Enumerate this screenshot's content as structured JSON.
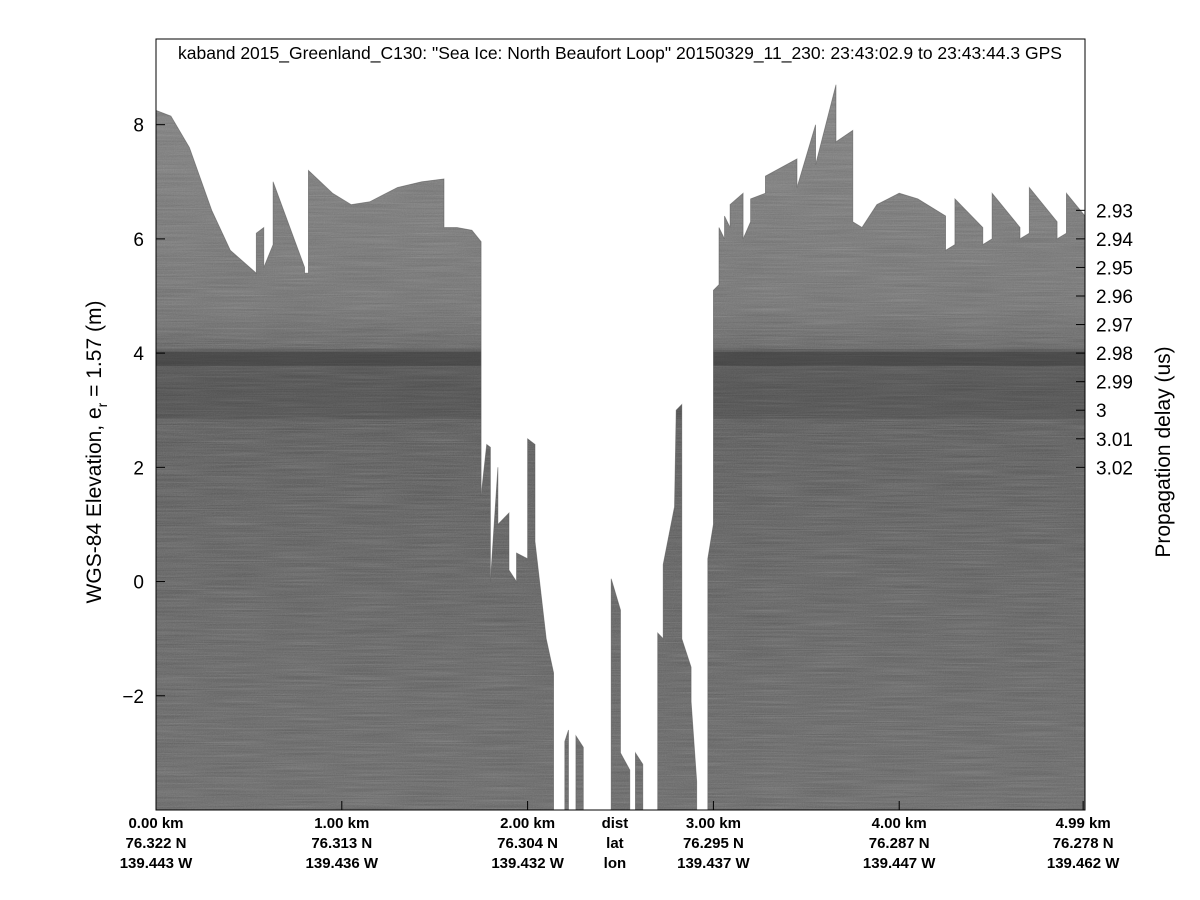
{
  "chart_data": {
    "type": "heatmap",
    "title": "kaband 2015_Greenland_C130: \"Sea Ice: North Beaufort Loop\"  20150329_11_230: 23:43:02.9 to 23:43:44.3 GPS",
    "ylabel_left_main": "WGS-84 Elevation, e",
    "ylabel_left_sub": "r",
    "ylabel_left_tail": " = 1.57 (m)",
    "ylabel_right": "Propagation delay (us)",
    "colormap": "gray",
    "grid": false,
    "xlim_km": [
      0,
      5.0
    ],
    "ylim_left": [
      -4,
      9.5
    ],
    "left_ticks": [
      8,
      6,
      4,
      2,
      0,
      -2
    ],
    "left_tick_labels": [
      "8",
      "6",
      "4",
      "2",
      "0",
      "−2"
    ],
    "right_axis_map": {
      "elevation_at_zero_delay": 3.0,
      "elevation_per_us": -50.0
    },
    "right_ticks": [
      2.93,
      2.94,
      2.95,
      2.96,
      2.97,
      2.98,
      2.99,
      3.0,
      3.01,
      3.02
    ],
    "right_tick_labels": [
      "2.93",
      "2.94",
      "2.95",
      "2.96",
      "2.97",
      "2.98",
      "2.99",
      "3",
      "3.01",
      "3.02"
    ],
    "x_annotations": [
      {
        "km": 0.0,
        "dist": "0.00 km",
        "lat": "76.322 N",
        "lon": "139.443 W"
      },
      {
        "km": 1.0,
        "dist": "1.00 km",
        "lat": "76.313 N",
        "lon": "139.436 W"
      },
      {
        "km": 2.0,
        "dist": "2.00 km",
        "lat": "76.304 N",
        "lon": "139.432 W"
      },
      {
        "km": 3.0,
        "dist": "3.00 km",
        "lat": "76.295 N",
        "lon": "139.437 W"
      },
      {
        "km": 4.0,
        "dist": "4.00 km",
        "lat": "76.287 N",
        "lon": "139.447 W"
      },
      {
        "km": 4.99,
        "dist": "4.99 km",
        "lat": "76.278 N",
        "lon": "139.462 W"
      }
    ],
    "legend_keys": {
      "km": 2.47,
      "dist": "dist",
      "lat": "lat",
      "lon": "lon"
    },
    "surface_profile_km_elev": [
      [
        0.0,
        8.25
      ],
      [
        0.08,
        8.15
      ],
      [
        0.18,
        7.6
      ],
      [
        0.3,
        6.5
      ],
      [
        0.4,
        5.8
      ],
      [
        0.54,
        5.4
      ],
      [
        0.54,
        6.1
      ],
      [
        0.58,
        6.2
      ],
      [
        0.58,
        5.5
      ],
      [
        0.63,
        5.9
      ],
      [
        0.63,
        7.0
      ],
      [
        0.8,
        5.5
      ],
      [
        0.8,
        5.4
      ],
      [
        0.82,
        5.4
      ],
      [
        0.82,
        7.2
      ],
      [
        0.95,
        6.8
      ],
      [
        1.05,
        6.6
      ],
      [
        1.15,
        6.65
      ],
      [
        1.3,
        6.9
      ],
      [
        1.43,
        7.0
      ],
      [
        1.55,
        7.05
      ],
      [
        1.55,
        6.2
      ],
      [
        1.62,
        6.2
      ],
      [
        1.7,
        6.15
      ],
      [
        1.75,
        5.95
      ],
      [
        1.75,
        1.5
      ],
      [
        1.78,
        2.4
      ],
      [
        1.8,
        2.35
      ],
      [
        1.8,
        0.0
      ],
      [
        1.84,
        2.0
      ],
      [
        1.84,
        1.0
      ],
      [
        1.9,
        1.2
      ],
      [
        1.9,
        0.2
      ],
      [
        1.94,
        0.0
      ],
      [
        1.94,
        0.5
      ],
      [
        2.0,
        0.4
      ],
      [
        2.0,
        2.5
      ],
      [
        2.04,
        2.4
      ],
      [
        2.04,
        0.7
      ],
      [
        2.1,
        -1.0
      ],
      [
        2.14,
        -1.6
      ],
      [
        2.14,
        -4.0
      ],
      [
        2.2,
        -4.0
      ],
      [
        2.2,
        -2.8
      ],
      [
        2.22,
        -2.6
      ],
      [
        2.22,
        -4.0
      ],
      [
        2.26,
        -4.0
      ],
      [
        2.26,
        -2.7
      ],
      [
        2.3,
        -2.9
      ],
      [
        2.3,
        -4.0
      ],
      [
        2.45,
        -4.0
      ],
      [
        2.45,
        0.05
      ],
      [
        2.5,
        -0.5
      ],
      [
        2.5,
        -3.0
      ],
      [
        2.55,
        -3.3
      ],
      [
        2.55,
        -4.0
      ],
      [
        2.58,
        -4.0
      ],
      [
        2.58,
        -3.0
      ],
      [
        2.62,
        -3.2
      ],
      [
        2.62,
        -4.0
      ],
      [
        2.7,
        -4.0
      ],
      [
        2.7,
        -0.9
      ],
      [
        2.73,
        -1.0
      ],
      [
        2.73,
        0.3
      ],
      [
        2.79,
        1.3
      ],
      [
        2.79,
        1.2
      ],
      [
        2.8,
        3.0
      ],
      [
        2.83,
        3.1
      ],
      [
        2.83,
        -1.0
      ],
      [
        2.88,
        -1.5
      ],
      [
        2.88,
        -2.1
      ],
      [
        2.91,
        -3.5
      ],
      [
        2.91,
        -4.0
      ],
      [
        2.97,
        -4.0
      ],
      [
        2.97,
        0.4
      ],
      [
        3.0,
        1.0
      ],
      [
        3.0,
        5.1
      ],
      [
        3.03,
        5.2
      ],
      [
        3.03,
        6.2
      ],
      [
        3.06,
        6.0
      ],
      [
        3.06,
        6.4
      ],
      [
        3.09,
        6.2
      ],
      [
        3.09,
        6.6
      ],
      [
        3.16,
        6.8
      ],
      [
        3.16,
        6.0
      ],
      [
        3.2,
        6.3
      ],
      [
        3.2,
        6.7
      ],
      [
        3.28,
        6.8
      ],
      [
        3.28,
        7.1
      ],
      [
        3.45,
        7.4
      ],
      [
        3.45,
        6.9
      ],
      [
        3.55,
        8.0
      ],
      [
        3.55,
        7.3
      ],
      [
        3.66,
        8.7
      ],
      [
        3.66,
        7.7
      ],
      [
        3.75,
        7.9
      ],
      [
        3.75,
        6.3
      ],
      [
        3.8,
        6.2
      ],
      [
        3.88,
        6.6
      ],
      [
        4.0,
        6.8
      ],
      [
        4.1,
        6.7
      ],
      [
        4.2,
        6.5
      ],
      [
        4.25,
        6.4
      ],
      [
        4.25,
        5.8
      ],
      [
        4.3,
        5.9
      ],
      [
        4.3,
        6.7
      ],
      [
        4.45,
        6.2
      ],
      [
        4.45,
        5.9
      ],
      [
        4.5,
        6.0
      ],
      [
        4.5,
        6.8
      ],
      [
        4.65,
        6.2
      ],
      [
        4.65,
        6.0
      ],
      [
        4.7,
        6.1
      ],
      [
        4.7,
        6.9
      ],
      [
        4.85,
        6.3
      ],
      [
        4.85,
        6.0
      ],
      [
        4.9,
        6.1
      ],
      [
        4.9,
        6.8
      ],
      [
        5.0,
        6.4
      ]
    ],
    "internal_layer_elev_m": 3.9
  }
}
